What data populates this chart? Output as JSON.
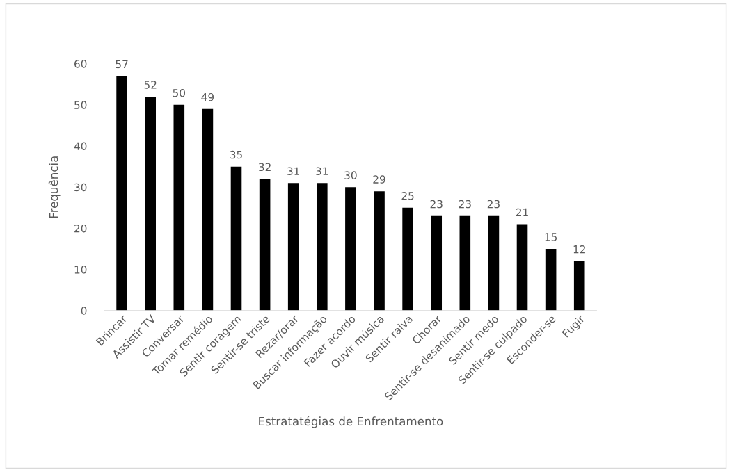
{
  "chart_data": {
    "type": "bar",
    "xlabel": "Estratatégias de Enfrentamento",
    "ylabel": "Frequência",
    "categories": [
      "Brincar",
      "Assistir TV",
      "Conversar",
      "Tomar remédio",
      "Sentir coragem",
      "Sentir-se triste",
      "Rezar/orar",
      "Buscar informação",
      "Fazer acordo",
      "Ouvir música",
      "Sentir raiva",
      "Chorar",
      "Sentir-se desanimado",
      "Sentir medo",
      "Sentir-se culpado",
      "Esconder-se",
      "Fugir"
    ],
    "values": [
      57,
      52,
      50,
      49,
      35,
      32,
      31,
      31,
      30,
      29,
      25,
      23,
      23,
      23,
      21,
      15,
      12
    ],
    "color": "#000000",
    "ylim": [
      0,
      60
    ],
    "yticks": [
      0,
      10,
      20,
      30,
      40,
      50,
      60
    ],
    "data_labels": true,
    "grid": false,
    "legend": false
  }
}
